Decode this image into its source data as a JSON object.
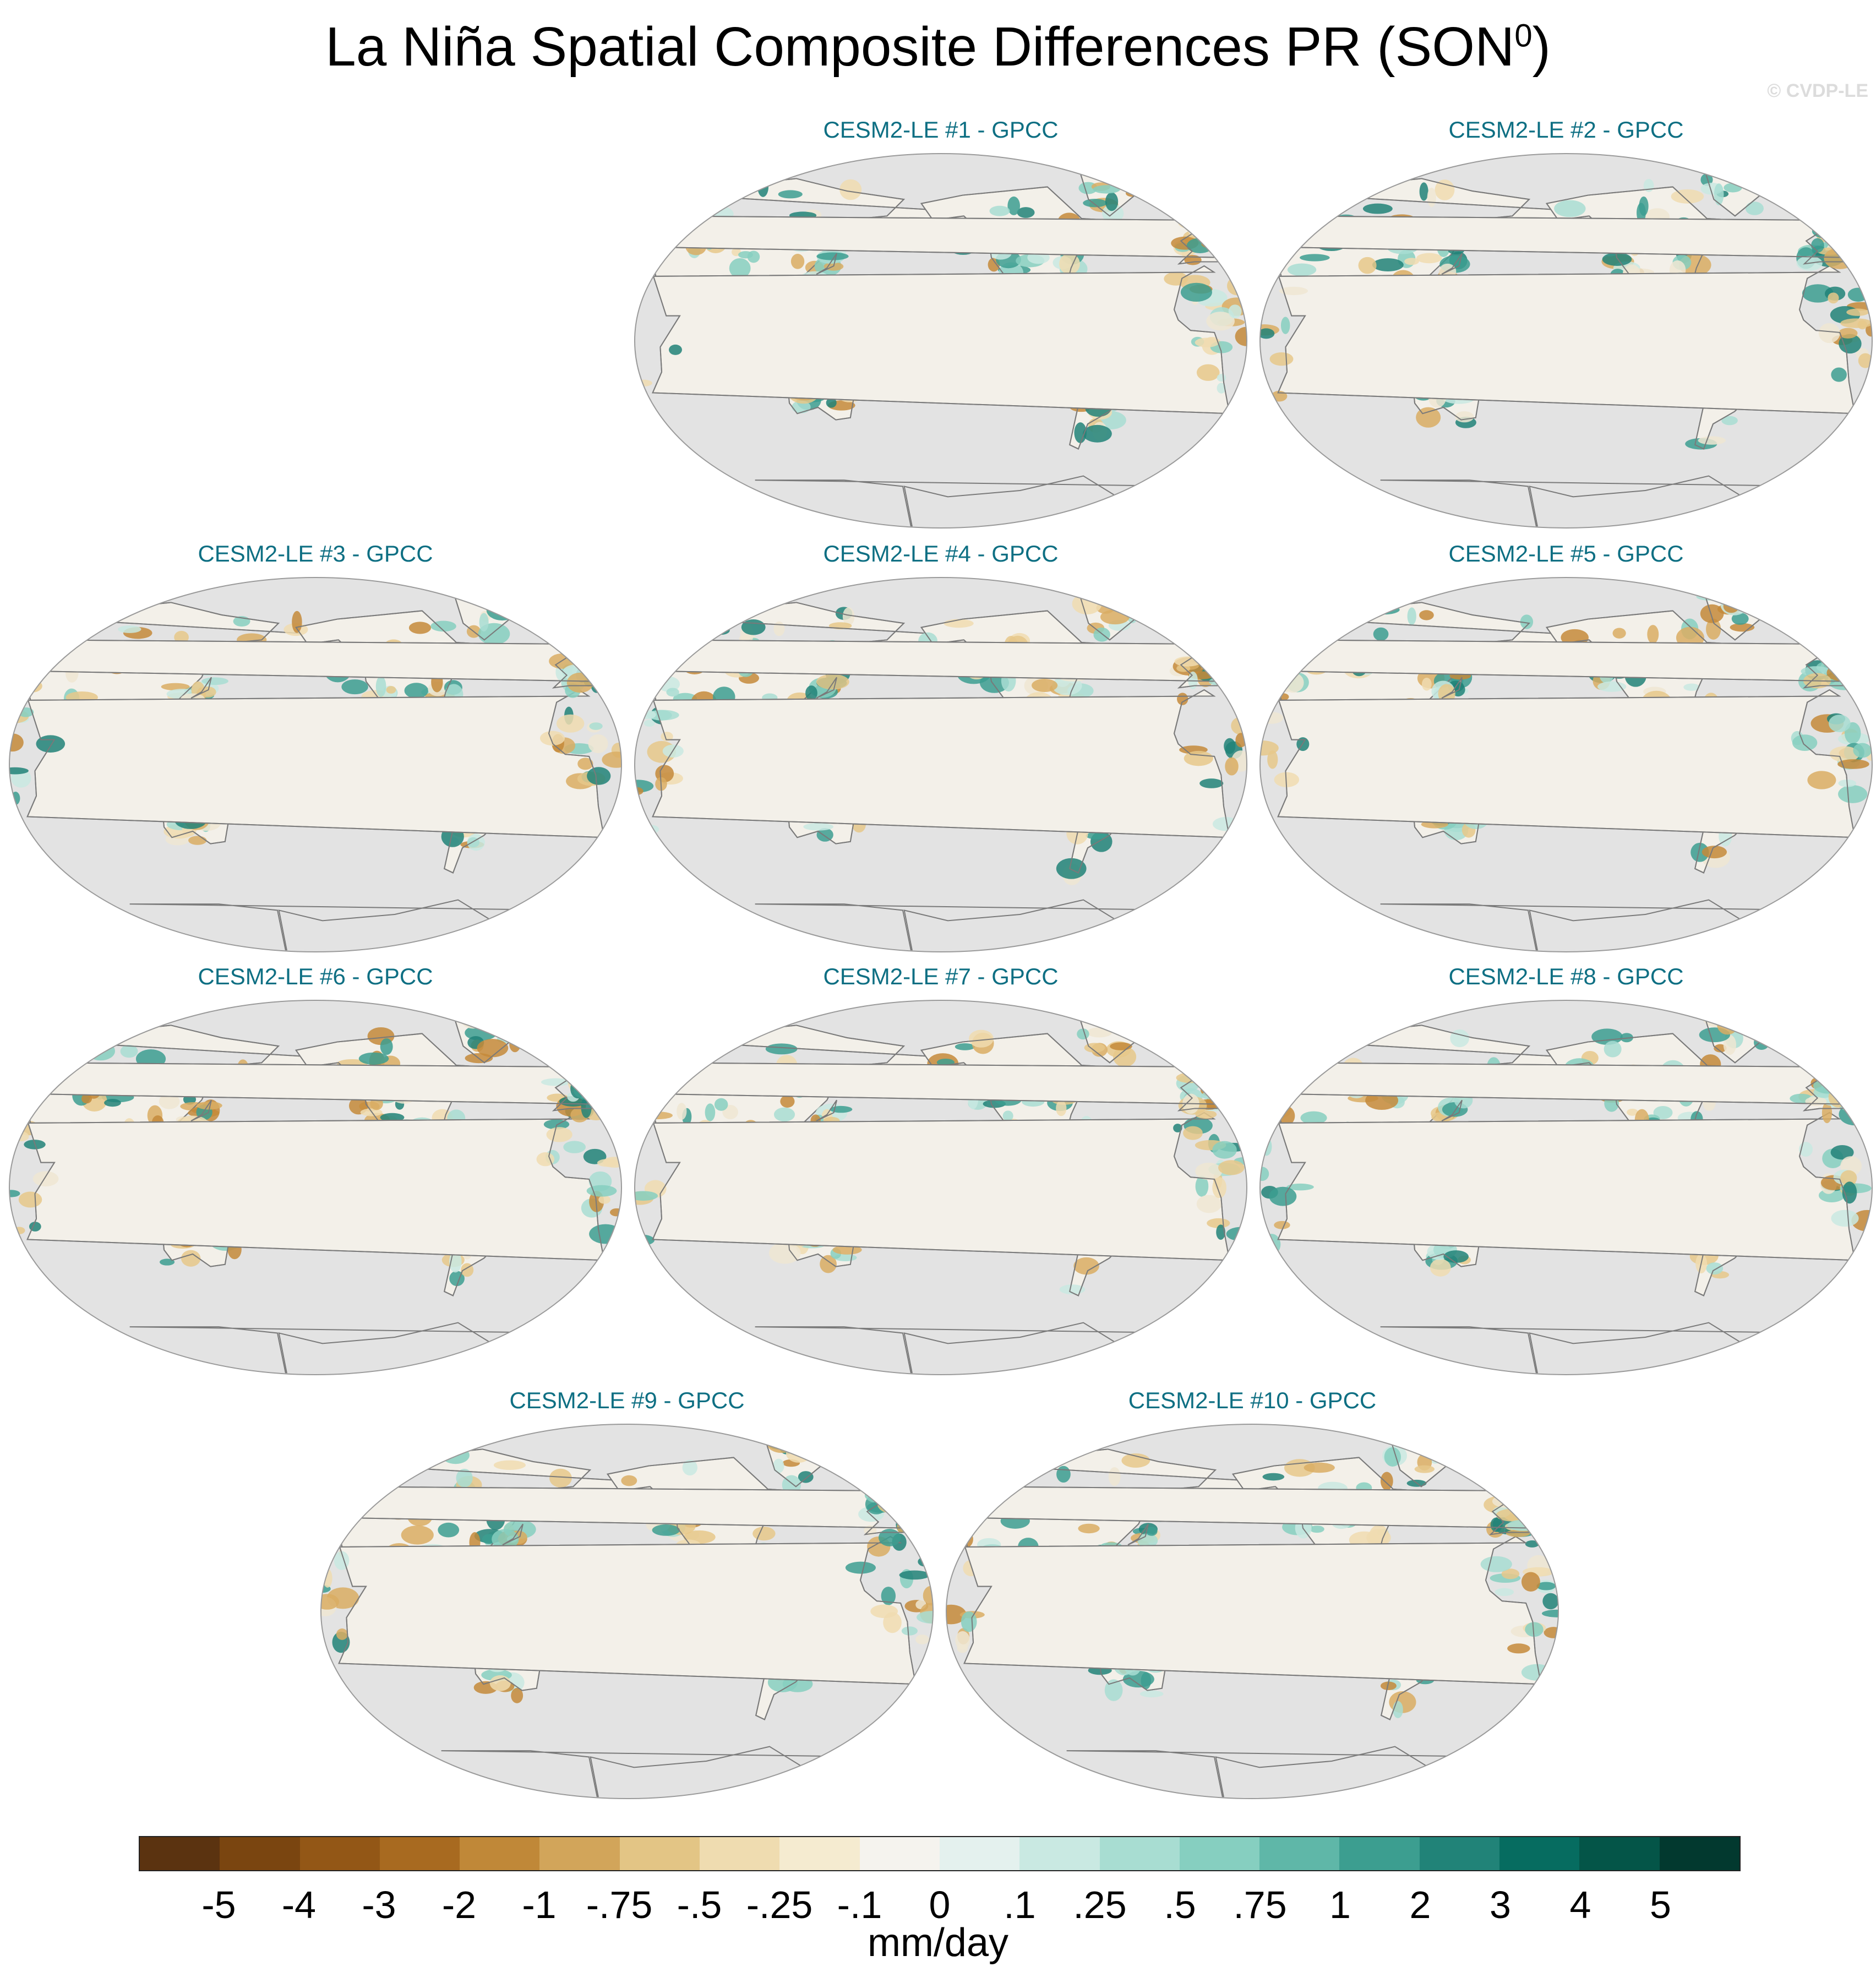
{
  "title": {
    "main": "La Niña Spatial Composite Differences PR (SON",
    "superscript": "0",
    "close": ")"
  },
  "copyright": "© CVDP-LE",
  "panels": [
    {
      "title": "CESM2-LE #1 - GPCC"
    },
    {
      "title": "CESM2-LE #2 - GPCC"
    },
    {
      "title": "CESM2-LE #3 - GPCC"
    },
    {
      "title": "CESM2-LE #4 - GPCC"
    },
    {
      "title": "CESM2-LE #5 - GPCC"
    },
    {
      "title": "CESM2-LE #6 - GPCC"
    },
    {
      "title": "CESM2-LE #7 - GPCC"
    },
    {
      "title": "CESM2-LE #8 - GPCC"
    },
    {
      "title": "CESM2-LE #9 - GPCC"
    },
    {
      "title": "CESM2-LE #10 - GPCC"
    }
  ],
  "map_colors": {
    "ocean": "#e3e3e3",
    "coastline": "#7a7a7a",
    "land_neutral": "#f3f0e9"
  },
  "colorbar": {
    "labels": [
      "-5",
      "-4",
      "-3",
      "-2",
      "-1",
      "-.75",
      "-.5",
      "-.25",
      "-.1",
      "0",
      ".1",
      ".25",
      ".5",
      ".75",
      "1",
      "2",
      "3",
      "4",
      "5"
    ],
    "colors": [
      "#5b3310",
      "#7a4510",
      "#935716",
      "#a86a20",
      "#c08838",
      "#d2a55a",
      "#e3c585",
      "#efdcb0",
      "#f5ebd0",
      "#f5f3ee",
      "#e4f1ee",
      "#c9e9e2",
      "#a8ddd2",
      "#86cfc0",
      "#5fb7a8",
      "#3c9e90",
      "#218378",
      "#066c60",
      "#045548",
      "#02392f"
    ],
    "units": "mm/day"
  }
}
